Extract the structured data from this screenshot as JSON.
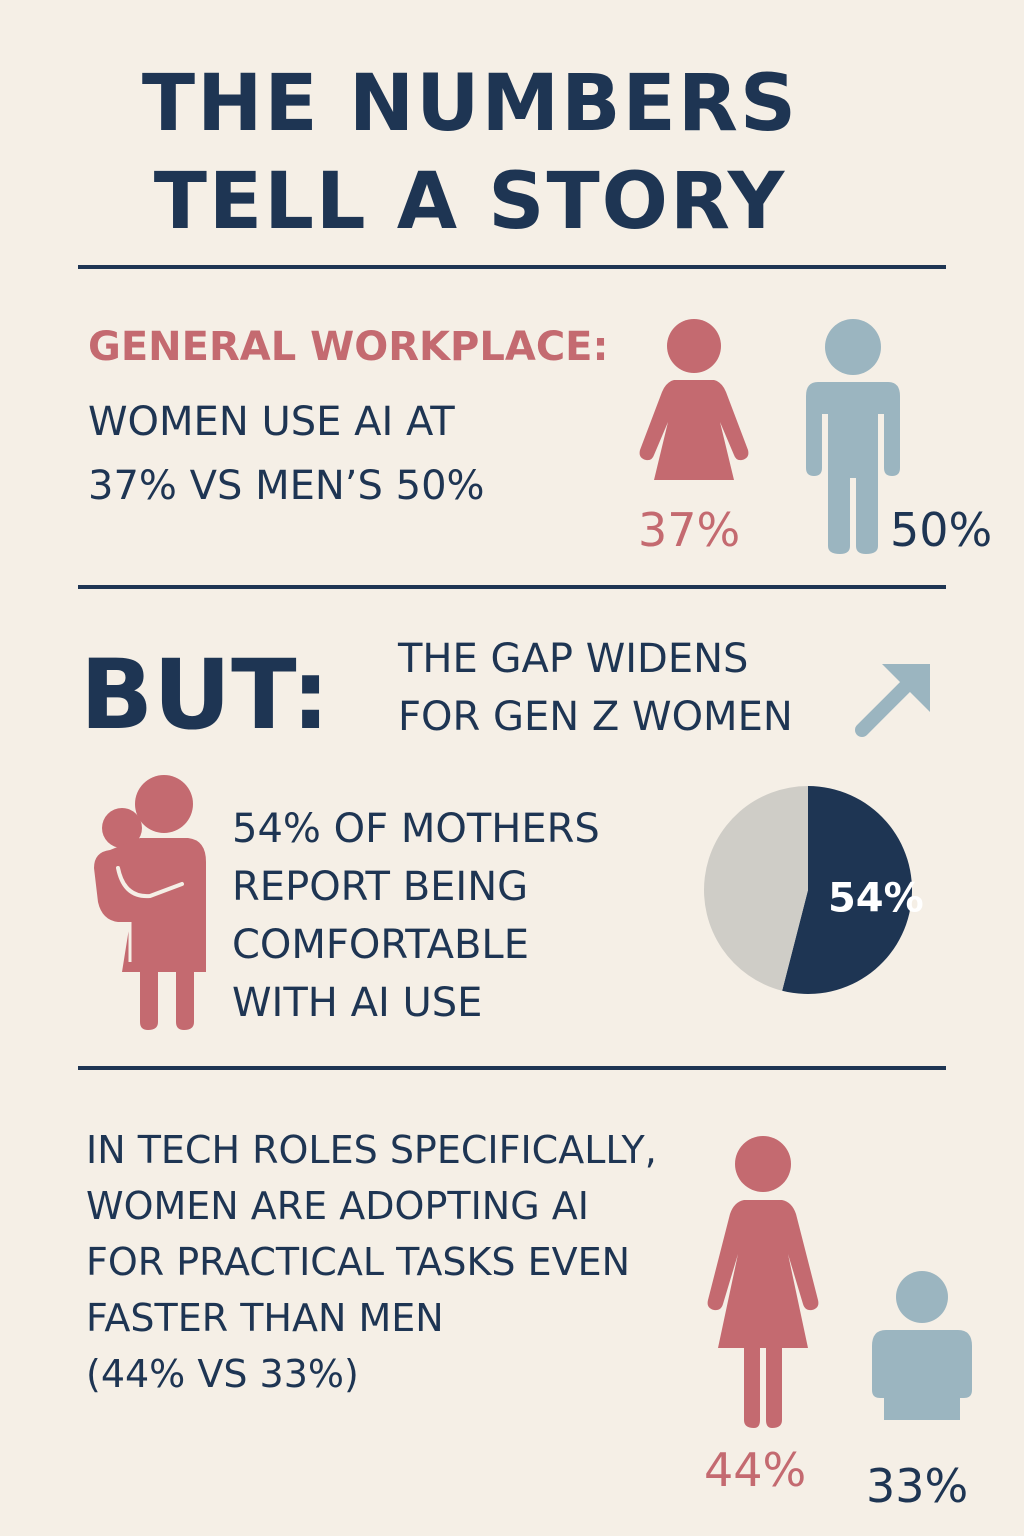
{
  "title": {
    "line1": "THE NUMBERS",
    "line2": "TELL A STORY"
  },
  "general": {
    "label": "GENERAL WORKPLACE:",
    "text_line1": "WOMEN USE AI AT",
    "text_line2": "37% VS MEN’S 50%",
    "women_pct": "37%",
    "men_pct": "50%"
  },
  "gap": {
    "but": "BUT:",
    "line1": "THE GAP WIDENS",
    "line2": "FOR GEN Z WOMEN",
    "icon": "arrow-up-right-icon"
  },
  "mothers": {
    "line1": "54% OF MOTHERS",
    "line2": "REPORT BEING",
    "line3": "COMFORTABLE",
    "line4": "WITH AI USE",
    "icon": "mother-child-icon"
  },
  "chart_data": {
    "type": "pie",
    "values": [
      54,
      46
    ],
    "labels": [
      "54%",
      ""
    ],
    "colors": [
      "#1e3553",
      "#cfcdc7"
    ]
  },
  "tech": {
    "line1": "IN TECH ROLES SPECIFICALLY,",
    "line2": "WOMEN ARE ADOPTING AI",
    "line3": "FOR PRACTICAL TASKS EVEN",
    "line4": "FASTER THAN MEN",
    "line5": "(44% VS 33%)",
    "women_pct": "44%",
    "men_pct": "33%"
  },
  "colors": {
    "navy": "#1e3553",
    "rose": "#c46a70",
    "blue_gray": "#9bb5c0",
    "background": "#f5efe6"
  }
}
